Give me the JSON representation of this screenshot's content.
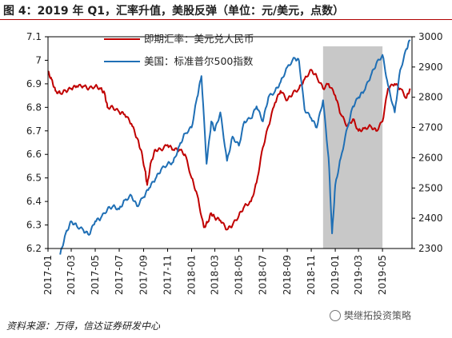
{
  "header": {
    "title": "图 4：2019 年 Q1，汇率升值，美股反弹（单位：元/美元，点数）"
  },
  "footer": {
    "source": "资料来源：万得，信达证券研发中心",
    "watermark": "樊继拓投资策略",
    "watermark_icon": "wechat-icon"
  },
  "chart_data": {
    "type": "line",
    "title": "2019 年 Q1，汇率升值，美股反弹",
    "x_ticks": [
      "2017-01",
      "2017-03",
      "2017-05",
      "2017-07",
      "2017-09",
      "2017-11",
      "2018-01",
      "2018-03",
      "2018-05",
      "2018-07",
      "2018-09",
      "2018-11",
      "2019-01",
      "2019-03",
      "2019-05"
    ],
    "x_range": [
      "2017-01-01",
      "2019-07-15"
    ],
    "y_left": {
      "ticks": [
        "6.2",
        "6.3",
        "6.4",
        "6.5",
        "6.6",
        "6.7",
        "6.8",
        "6.9",
        "7",
        "7.1"
      ],
      "ylim": [
        6.2,
        7.1
      ]
    },
    "y_right": {
      "ticks": [
        "2300",
        "2400",
        "2500",
        "2600",
        "2700",
        "2800",
        "2900",
        "3000"
      ],
      "ylim": [
        2300,
        3000
      ]
    },
    "highlight": {
      "from": "2018-12-01",
      "to": "2019-05-01",
      "color": "#c8c8c8"
    },
    "legend_position": "top-center",
    "series": [
      {
        "name": "即期汇率：美元兑人民币",
        "axis": "left",
        "color": "#c00000",
        "points": [
          [
            "2017-01-01",
            6.95
          ],
          [
            "2017-01-10",
            6.92
          ],
          [
            "2017-01-20",
            6.87
          ],
          [
            "2017-02-01",
            6.86
          ],
          [
            "2017-02-15",
            6.87
          ],
          [
            "2017-03-01",
            6.88
          ],
          [
            "2017-03-15",
            6.89
          ],
          [
            "2017-04-01",
            6.89
          ],
          [
            "2017-04-15",
            6.88
          ],
          [
            "2017-05-01",
            6.89
          ],
          [
            "2017-05-15",
            6.88
          ],
          [
            "2017-05-25",
            6.86
          ],
          [
            "2017-06-01",
            6.8
          ],
          [
            "2017-06-15",
            6.8
          ],
          [
            "2017-07-01",
            6.78
          ],
          [
            "2017-07-15",
            6.77
          ],
          [
            "2017-08-01",
            6.73
          ],
          [
            "2017-08-15",
            6.67
          ],
          [
            "2017-08-25",
            6.62
          ],
          [
            "2017-09-05",
            6.53
          ],
          [
            "2017-09-10",
            6.47
          ],
          [
            "2017-09-20",
            6.57
          ],
          [
            "2017-10-01",
            6.62
          ],
          [
            "2017-10-15",
            6.62
          ],
          [
            "2017-11-01",
            6.64
          ],
          [
            "2017-11-15",
            6.62
          ],
          [
            "2017-12-01",
            6.62
          ],
          [
            "2017-12-15",
            6.6
          ],
          [
            "2018-01-01",
            6.5
          ],
          [
            "2018-01-15",
            6.43
          ],
          [
            "2018-02-01",
            6.29
          ],
          [
            "2018-02-10",
            6.31
          ],
          [
            "2018-02-20",
            6.35
          ],
          [
            "2018-03-01",
            6.33
          ],
          [
            "2018-03-15",
            6.32
          ],
          [
            "2018-04-01",
            6.28
          ],
          [
            "2018-04-15",
            6.3
          ],
          [
            "2018-05-01",
            6.34
          ],
          [
            "2018-05-15",
            6.38
          ],
          [
            "2018-06-01",
            6.4
          ],
          [
            "2018-06-15",
            6.48
          ],
          [
            "2018-07-01",
            6.63
          ],
          [
            "2018-07-15",
            6.72
          ],
          [
            "2018-08-01",
            6.82
          ],
          [
            "2018-08-15",
            6.87
          ],
          [
            "2018-09-01",
            6.83
          ],
          [
            "2018-09-15",
            6.86
          ],
          [
            "2018-10-01",
            6.88
          ],
          [
            "2018-10-15",
            6.92
          ],
          [
            "2018-11-01",
            6.96
          ],
          [
            "2018-11-15",
            6.93
          ],
          [
            "2018-12-01",
            6.88
          ],
          [
            "2018-12-15",
            6.9
          ],
          [
            "2019-01-01",
            6.85
          ],
          [
            "2019-01-15",
            6.77
          ],
          [
            "2019-02-01",
            6.72
          ],
          [
            "2019-02-15",
            6.75
          ],
          [
            "2019-03-01",
            6.7
          ],
          [
            "2019-03-15",
            6.71
          ],
          [
            "2019-04-01",
            6.72
          ],
          [
            "2019-04-15",
            6.7
          ],
          [
            "2019-05-01",
            6.74
          ],
          [
            "2019-05-15",
            6.88
          ],
          [
            "2019-06-01",
            6.9
          ],
          [
            "2019-06-15",
            6.88
          ],
          [
            "2019-07-01",
            6.84
          ],
          [
            "2019-07-10",
            6.88
          ]
        ]
      },
      {
        "name": "美国：标准普尔500指数",
        "axis": "right",
        "color": "#1f6fb5",
        "points": [
          [
            "2017-02-01",
            2280
          ],
          [
            "2017-02-15",
            2350
          ],
          [
            "2017-03-01",
            2390
          ],
          [
            "2017-03-15",
            2375
          ],
          [
            "2017-04-01",
            2360
          ],
          [
            "2017-04-15",
            2345
          ],
          [
            "2017-05-01",
            2390
          ],
          [
            "2017-05-15",
            2400
          ],
          [
            "2017-06-01",
            2430
          ],
          [
            "2017-06-15",
            2440
          ],
          [
            "2017-07-01",
            2430
          ],
          [
            "2017-07-15",
            2460
          ],
          [
            "2017-08-01",
            2475
          ],
          [
            "2017-08-15",
            2440
          ],
          [
            "2017-09-01",
            2470
          ],
          [
            "2017-09-15",
            2500
          ],
          [
            "2017-10-01",
            2530
          ],
          [
            "2017-10-15",
            2560
          ],
          [
            "2017-11-01",
            2580
          ],
          [
            "2017-11-15",
            2585
          ],
          [
            "2017-12-01",
            2640
          ],
          [
            "2017-12-15",
            2680
          ],
          [
            "2018-01-01",
            2700
          ],
          [
            "2018-01-15",
            2800
          ],
          [
            "2018-01-26",
            2870
          ],
          [
            "2018-02-08",
            2580
          ],
          [
            "2018-02-20",
            2720
          ],
          [
            "2018-03-01",
            2690
          ],
          [
            "2018-03-15",
            2750
          ],
          [
            "2018-04-01",
            2590
          ],
          [
            "2018-04-15",
            2670
          ],
          [
            "2018-05-01",
            2640
          ],
          [
            "2018-05-15",
            2720
          ],
          [
            "2018-06-01",
            2730
          ],
          [
            "2018-06-15",
            2770
          ],
          [
            "2018-07-01",
            2720
          ],
          [
            "2018-07-15",
            2800
          ],
          [
            "2018-08-01",
            2820
          ],
          [
            "2018-08-15",
            2850
          ],
          [
            "2018-09-01",
            2900
          ],
          [
            "2018-09-20",
            2930
          ],
          [
            "2018-10-01",
            2920
          ],
          [
            "2018-10-15",
            2760
          ],
          [
            "2018-11-01",
            2730
          ],
          [
            "2018-11-15",
            2700
          ],
          [
            "2018-12-01",
            2790
          ],
          [
            "2018-12-15",
            2600
          ],
          [
            "2018-12-24",
            2350
          ],
          [
            "2019-01-01",
            2510
          ],
          [
            "2019-01-15",
            2600
          ],
          [
            "2019-02-01",
            2700
          ],
          [
            "2019-02-15",
            2770
          ],
          [
            "2019-03-01",
            2800
          ],
          [
            "2019-03-15",
            2820
          ],
          [
            "2019-04-01",
            2870
          ],
          [
            "2019-04-15",
            2910
          ],
          [
            "2019-05-01",
            2940
          ],
          [
            "2019-05-15",
            2840
          ],
          [
            "2019-06-01",
            2750
          ],
          [
            "2019-06-15",
            2890
          ],
          [
            "2019-07-01",
            2960
          ],
          [
            "2019-07-10",
            2990
          ]
        ]
      }
    ]
  }
}
